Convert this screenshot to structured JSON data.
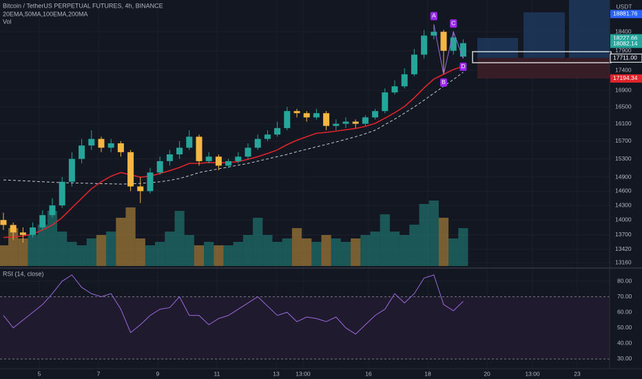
{
  "chart_data": [
    {
      "type": "candlestick",
      "title": "Bitcoin / TetherUS PERPETUAL FUTURES, 4h, BINANCE",
      "subtitle": "20EMA,50MA,100EMA,200MA",
      "volume_label": "Vol",
      "currency": "USDT",
      "log_scale": true,
      "grid": true,
      "xlim": [
        -0.35,
        61.97
      ],
      "ylim": [
        13070,
        19270
      ],
      "yticks": [
        18400,
        17900,
        17400,
        16900,
        16500,
        16100,
        15700,
        15300,
        14900,
        14600,
        14300,
        14000,
        13700,
        13420,
        13160
      ],
      "xticks": [
        {
          "value": 3.66,
          "label": "5"
        },
        {
          "value": 9.72,
          "label": "7"
        },
        {
          "value": 15.77,
          "label": "9"
        },
        {
          "value": 21.83,
          "label": "11"
        },
        {
          "value": 27.89,
          "label": "13"
        },
        {
          "value": 30.63,
          "label": "13:00"
        },
        {
          "value": 37.32,
          "label": "16"
        },
        {
          "value": 43.38,
          "label": "18"
        },
        {
          "value": 49.44,
          "label": "20"
        },
        {
          "value": 54.08,
          "label": "13:00"
        },
        {
          "value": 58.66,
          "label": "23"
        }
      ],
      "up_color": "#26a69a",
      "down_color": "#f5b642",
      "open": [
        14000,
        13900,
        13750,
        13700,
        13850,
        14100,
        14300,
        14800,
        15300,
        15600,
        15750,
        15550,
        15650,
        15450,
        14700,
        14600,
        15000,
        15250,
        15400,
        15550,
        15800,
        15250,
        15350,
        15150,
        15250,
        15350,
        15550,
        15750,
        15850,
        16000,
        16400,
        16350,
        16250,
        16350,
        16050,
        16100,
        16150,
        16100,
        16250,
        16400,
        16850,
        17000,
        17300,
        17800,
        18300,
        18400,
        17900,
        17750
      ],
      "high": [
        14150,
        13950,
        13850,
        13950,
        14200,
        14450,
        14900,
        15450,
        15750,
        15950,
        15800,
        15750,
        15700,
        15500,
        14900,
        15100,
        15350,
        15500,
        15700,
        15950,
        15850,
        15450,
        15400,
        15300,
        15450,
        15650,
        15850,
        15950,
        16150,
        16500,
        16450,
        16400,
        16450,
        16400,
        16200,
        16250,
        16200,
        16300,
        16450,
        16950,
        17150,
        17450,
        17950,
        18450,
        18600,
        18450,
        18400,
        18200
      ],
      "low": [
        13800,
        13600,
        13550,
        13650,
        13800,
        14050,
        14250,
        14700,
        15200,
        15500,
        15450,
        15450,
        15350,
        14600,
        14350,
        14550,
        14950,
        15150,
        15300,
        15500,
        15150,
        15200,
        15050,
        15100,
        15200,
        15300,
        15500,
        15700,
        15800,
        15950,
        16250,
        16150,
        16200,
        15950,
        15950,
        16000,
        16000,
        16050,
        16200,
        16350,
        16800,
        16950,
        17250,
        17700,
        18200,
        17300,
        17800,
        17700
      ],
      "close": [
        13900,
        13750,
        13700,
        13850,
        14100,
        14300,
        14800,
        15300,
        15600,
        15750,
        15550,
        15650,
        15450,
        14700,
        14600,
        15000,
        15250,
        15400,
        15550,
        15800,
        15250,
        15350,
        15150,
        15250,
        15350,
        15550,
        15750,
        15850,
        16000,
        16400,
        16350,
        16250,
        16350,
        16050,
        16100,
        16150,
        16100,
        16250,
        16400,
        16850,
        17000,
        17300,
        17800,
        18300,
        18400,
        17900,
        18250,
        18100
      ],
      "volume": [
        30,
        55,
        40,
        45,
        60,
        80,
        50,
        35,
        30,
        40,
        45,
        50,
        70,
        85,
        40,
        30,
        35,
        50,
        80,
        45,
        30,
        35,
        30,
        30,
        35,
        45,
        70,
        45,
        35,
        40,
        55,
        40,
        35,
        45,
        40,
        35,
        40,
        45,
        50,
        75,
        50,
        45,
        60,
        90,
        95,
        70,
        40,
        55
      ],
      "lines": [
        {
          "color": "#e0242b",
          "dashed": false,
          "values": [
            13650,
            13660,
            13680,
            13720,
            13800,
            13900,
            14050,
            14250,
            14450,
            14650,
            14800,
            14920,
            15000,
            14950,
            14900,
            14920,
            14980,
            15040,
            15110,
            15200,
            15200,
            15220,
            15210,
            15220,
            15240,
            15290,
            15350,
            15420,
            15500,
            15620,
            15720,
            15800,
            15880,
            15900,
            15930,
            15960,
            15990,
            16040,
            16110,
            16230,
            16360,
            16510,
            16720,
            16960,
            17180,
            17300,
            17420,
            17500
          ]
        },
        {
          "color": "#c8cbd3",
          "dashed": true,
          "values": [
            14840,
            14830,
            14820,
            14810,
            14800,
            14790,
            14780,
            14775,
            14770,
            14765,
            14760,
            14755,
            14750,
            14755,
            14765,
            14780,
            14800,
            14830,
            14870,
            14930,
            15000,
            15040,
            15080,
            15120,
            15160,
            15200,
            15250,
            15300,
            15350,
            15400,
            15460,
            15515,
            15570,
            15625,
            15680,
            15740,
            15800,
            15870,
            15950,
            16080,
            16210,
            16350,
            16500,
            16660,
            16830,
            17000,
            17170,
            17350
          ]
        }
      ],
      "annotations": [
        "A",
        "B",
        "C",
        "D"
      ],
      "price_labels": [
        {
          "value": 18881.76,
          "color": "#2962ff"
        },
        {
          "value": 18227.66,
          "color": "#26a69a"
        },
        {
          "value": 18082.14,
          "color": "#26a69a"
        },
        {
          "value": 17711,
          "label": "17711.00",
          "color": "#ffffff"
        },
        {
          "value": 17194.34,
          "color": "#e0242b"
        }
      ]
    },
    {
      "type": "line",
      "title": "RSI (14, close)",
      "color": "#9c6ade",
      "ylim": [
        23.8,
        87.1
      ],
      "yticks": [
        {
          "value": 80,
          "label": "80.00"
        },
        {
          "value": 70,
          "label": "70.00"
        },
        {
          "value": 60,
          "label": "60.00"
        },
        {
          "value": 50,
          "label": "50.00"
        },
        {
          "value": 40,
          "label": "40.00"
        },
        {
          "value": 30,
          "label": "30.00"
        }
      ],
      "bands": [
        70,
        30
      ],
      "values": [
        58,
        50,
        55,
        60,
        65,
        72,
        80,
        84,
        76,
        72,
        70,
        72,
        62,
        47,
        52,
        58,
        62,
        63,
        70,
        58,
        58,
        52,
        56,
        58,
        62,
        66,
        70,
        64,
        58,
        60,
        54,
        57,
        56,
        54,
        57,
        50,
        46,
        52,
        58,
        62,
        72,
        66,
        72,
        82,
        84,
        65,
        61,
        67
      ]
    }
  ]
}
